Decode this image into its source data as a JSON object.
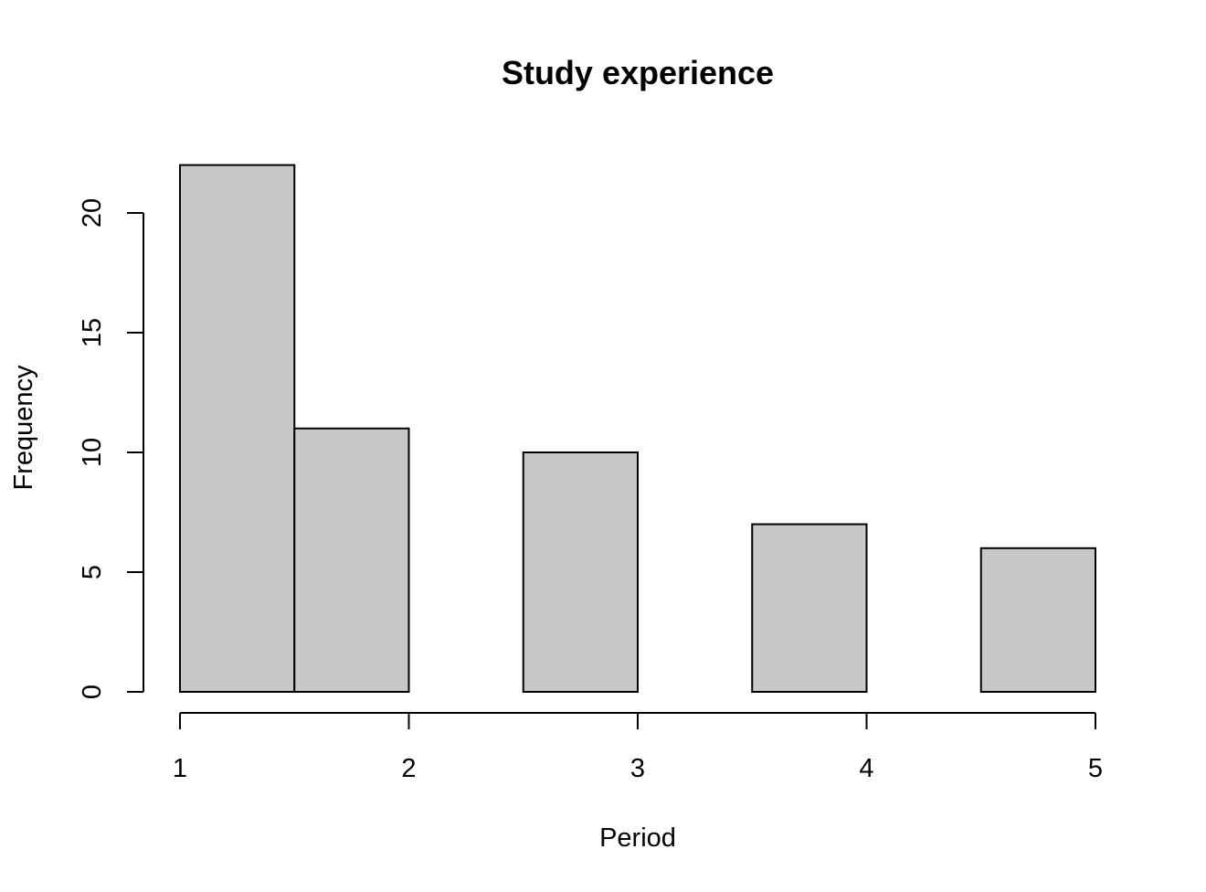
{
  "chart_data": {
    "type": "bar",
    "title": "Study experience",
    "xlabel": "Period",
    "ylabel": "Frequency",
    "bins": [
      {
        "start": 1.0,
        "end": 1.5,
        "count": 22
      },
      {
        "start": 1.5,
        "end": 2.0,
        "count": 11
      },
      {
        "start": 2.0,
        "end": 2.5,
        "count": 0
      },
      {
        "start": 2.5,
        "end": 3.0,
        "count": 10
      },
      {
        "start": 3.0,
        "end": 3.5,
        "count": 0
      },
      {
        "start": 3.5,
        "end": 4.0,
        "count": 7
      },
      {
        "start": 4.0,
        "end": 4.5,
        "count": 0
      },
      {
        "start": 4.5,
        "end": 5.0,
        "count": 6
      }
    ],
    "xticks": [
      "1",
      "2",
      "3",
      "4",
      "5"
    ],
    "yticks": [
      "0",
      "5",
      "10",
      "15",
      "20"
    ],
    "xlim": [
      1,
      5
    ],
    "ylim": [
      0,
      20
    ],
    "bar_color": "#c8c8c8",
    "edge_color": "#000000",
    "grid": false
  }
}
